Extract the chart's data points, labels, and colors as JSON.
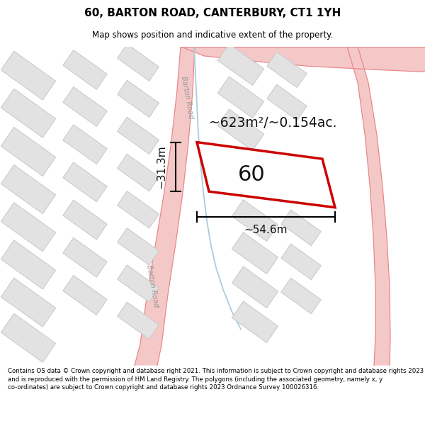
{
  "title": "60, BARTON ROAD, CANTERBURY, CT1 1YH",
  "subtitle": "Map shows position and indicative extent of the property.",
  "footer": "Contains OS data © Crown copyright and database right 2021. This information is subject to Crown copyright and database rights 2023 and is reproduced with the permission of HM Land Registry. The polygons (including the associated geometry, namely x, y co-ordinates) are subject to Crown copyright and database rights 2023 Ordnance Survey 100026316.",
  "bg_color": "#ffffff",
  "map_bg": "#f8f8f6",
  "road_fill": "#f5c8c8",
  "road_edge": "#e88888",
  "building_fill": "#e2e2e2",
  "building_edge": "#c8c8c8",
  "property_fill": "#ffffff",
  "property_edge": "#cc0000",
  "area_text": "~623m²/~0.154ac.",
  "property_label": "60",
  "dim_width": "~54.6m",
  "dim_height": "~31.3m",
  "road_label_upper": "Barton Road",
  "road_label_lower": "Barton Road",
  "path_color": "#aaccdd"
}
